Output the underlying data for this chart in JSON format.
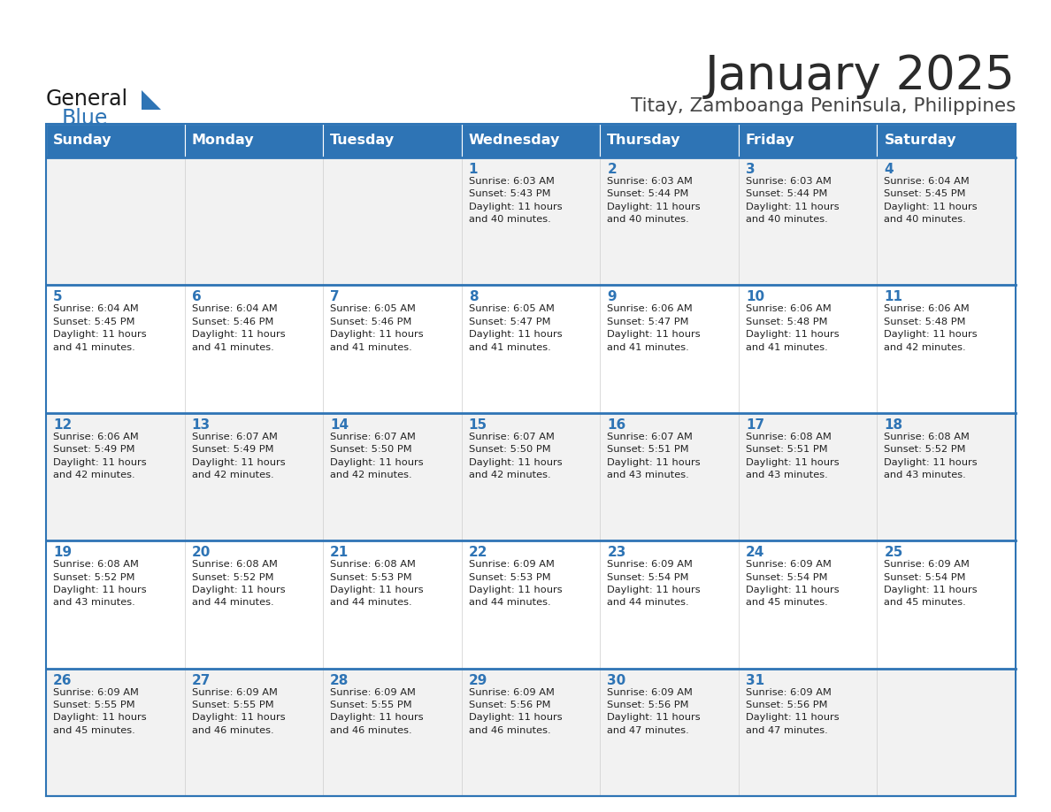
{
  "title": "January 2025",
  "subtitle": "Titay, Zamboanga Peninsula, Philippines",
  "days_of_week": [
    "Sunday",
    "Monday",
    "Tuesday",
    "Wednesday",
    "Thursday",
    "Friday",
    "Saturday"
  ],
  "header_bg": "#2E74B5",
  "header_text": "#FFFFFF",
  "cell_bg_odd": "#F2F2F2",
  "cell_bg_even": "#FFFFFF",
  "border_color": "#2E74B5",
  "title_color": "#2B2B2B",
  "subtitle_color": "#444444",
  "day_num_color": "#2E74B5",
  "cell_text_color": "#222222",
  "separator_color": "#2E74B5",
  "calendar_data": [
    [
      {
        "day": 0,
        "info": ""
      },
      {
        "day": 0,
        "info": ""
      },
      {
        "day": 0,
        "info": ""
      },
      {
        "day": 1,
        "info": "Sunrise: 6:03 AM\nSunset: 5:43 PM\nDaylight: 11 hours\nand 40 minutes."
      },
      {
        "day": 2,
        "info": "Sunrise: 6:03 AM\nSunset: 5:44 PM\nDaylight: 11 hours\nand 40 minutes."
      },
      {
        "day": 3,
        "info": "Sunrise: 6:03 AM\nSunset: 5:44 PM\nDaylight: 11 hours\nand 40 minutes."
      },
      {
        "day": 4,
        "info": "Sunrise: 6:04 AM\nSunset: 5:45 PM\nDaylight: 11 hours\nand 40 minutes."
      }
    ],
    [
      {
        "day": 5,
        "info": "Sunrise: 6:04 AM\nSunset: 5:45 PM\nDaylight: 11 hours\nand 41 minutes."
      },
      {
        "day": 6,
        "info": "Sunrise: 6:04 AM\nSunset: 5:46 PM\nDaylight: 11 hours\nand 41 minutes."
      },
      {
        "day": 7,
        "info": "Sunrise: 6:05 AM\nSunset: 5:46 PM\nDaylight: 11 hours\nand 41 minutes."
      },
      {
        "day": 8,
        "info": "Sunrise: 6:05 AM\nSunset: 5:47 PM\nDaylight: 11 hours\nand 41 minutes."
      },
      {
        "day": 9,
        "info": "Sunrise: 6:06 AM\nSunset: 5:47 PM\nDaylight: 11 hours\nand 41 minutes."
      },
      {
        "day": 10,
        "info": "Sunrise: 6:06 AM\nSunset: 5:48 PM\nDaylight: 11 hours\nand 41 minutes."
      },
      {
        "day": 11,
        "info": "Sunrise: 6:06 AM\nSunset: 5:48 PM\nDaylight: 11 hours\nand 42 minutes."
      }
    ],
    [
      {
        "day": 12,
        "info": "Sunrise: 6:06 AM\nSunset: 5:49 PM\nDaylight: 11 hours\nand 42 minutes."
      },
      {
        "day": 13,
        "info": "Sunrise: 6:07 AM\nSunset: 5:49 PM\nDaylight: 11 hours\nand 42 minutes."
      },
      {
        "day": 14,
        "info": "Sunrise: 6:07 AM\nSunset: 5:50 PM\nDaylight: 11 hours\nand 42 minutes."
      },
      {
        "day": 15,
        "info": "Sunrise: 6:07 AM\nSunset: 5:50 PM\nDaylight: 11 hours\nand 42 minutes."
      },
      {
        "day": 16,
        "info": "Sunrise: 6:07 AM\nSunset: 5:51 PM\nDaylight: 11 hours\nand 43 minutes."
      },
      {
        "day": 17,
        "info": "Sunrise: 6:08 AM\nSunset: 5:51 PM\nDaylight: 11 hours\nand 43 minutes."
      },
      {
        "day": 18,
        "info": "Sunrise: 6:08 AM\nSunset: 5:52 PM\nDaylight: 11 hours\nand 43 minutes."
      }
    ],
    [
      {
        "day": 19,
        "info": "Sunrise: 6:08 AM\nSunset: 5:52 PM\nDaylight: 11 hours\nand 43 minutes."
      },
      {
        "day": 20,
        "info": "Sunrise: 6:08 AM\nSunset: 5:52 PM\nDaylight: 11 hours\nand 44 minutes."
      },
      {
        "day": 21,
        "info": "Sunrise: 6:08 AM\nSunset: 5:53 PM\nDaylight: 11 hours\nand 44 minutes."
      },
      {
        "day": 22,
        "info": "Sunrise: 6:09 AM\nSunset: 5:53 PM\nDaylight: 11 hours\nand 44 minutes."
      },
      {
        "day": 23,
        "info": "Sunrise: 6:09 AM\nSunset: 5:54 PM\nDaylight: 11 hours\nand 44 minutes."
      },
      {
        "day": 24,
        "info": "Sunrise: 6:09 AM\nSunset: 5:54 PM\nDaylight: 11 hours\nand 45 minutes."
      },
      {
        "day": 25,
        "info": "Sunrise: 6:09 AM\nSunset: 5:54 PM\nDaylight: 11 hours\nand 45 minutes."
      }
    ],
    [
      {
        "day": 26,
        "info": "Sunrise: 6:09 AM\nSunset: 5:55 PM\nDaylight: 11 hours\nand 45 minutes."
      },
      {
        "day": 27,
        "info": "Sunrise: 6:09 AM\nSunset: 5:55 PM\nDaylight: 11 hours\nand 46 minutes."
      },
      {
        "day": 28,
        "info": "Sunrise: 6:09 AM\nSunset: 5:55 PM\nDaylight: 11 hours\nand 46 minutes."
      },
      {
        "day": 29,
        "info": "Sunrise: 6:09 AM\nSunset: 5:56 PM\nDaylight: 11 hours\nand 46 minutes."
      },
      {
        "day": 30,
        "info": "Sunrise: 6:09 AM\nSunset: 5:56 PM\nDaylight: 11 hours\nand 47 minutes."
      },
      {
        "day": 31,
        "info": "Sunrise: 6:09 AM\nSunset: 5:56 PM\nDaylight: 11 hours\nand 47 minutes."
      },
      {
        "day": 0,
        "info": ""
      }
    ]
  ]
}
